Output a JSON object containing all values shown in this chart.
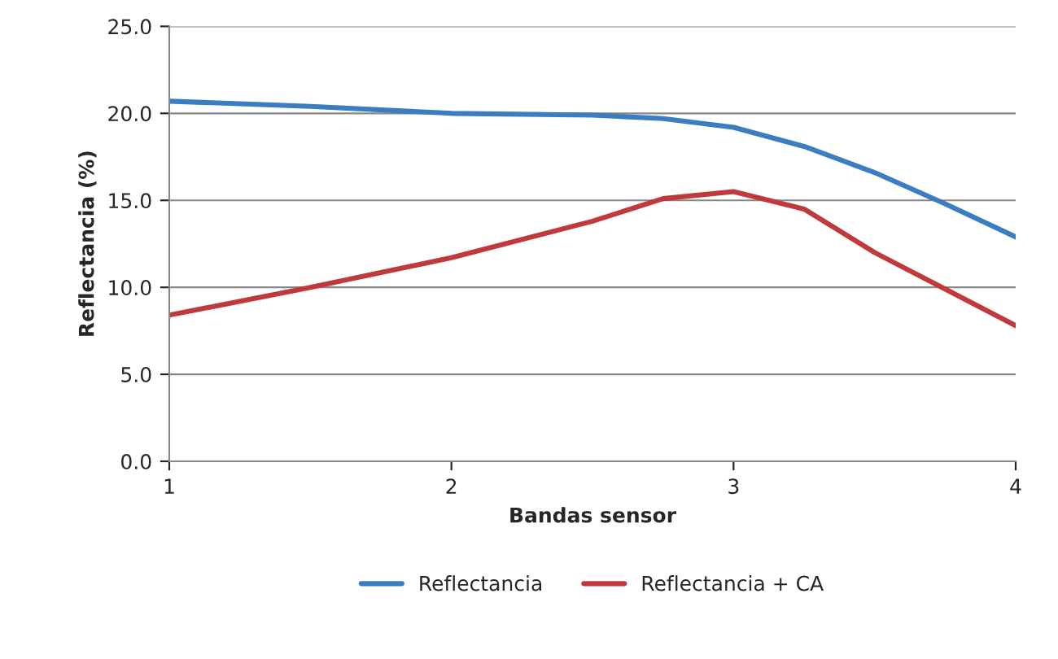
{
  "chart_data": {
    "type": "line",
    "xlabel": "Bandas sensor",
    "ylabel": "Reflectancia (%)",
    "x": [
      1,
      1.5,
      2,
      2.5,
      2.75,
      3,
      3.25,
      3.5,
      3.75,
      4
    ],
    "series": [
      {
        "name": "Reflectancia",
        "color": "#3a7dc0",
        "values": [
          20.7,
          20.4,
          20.0,
          19.9,
          19.7,
          19.2,
          18.1,
          16.6,
          14.8,
          12.9
        ]
      },
      {
        "name": "Reflectancia + CA",
        "color": "#c0393b",
        "values": [
          8.4,
          10.0,
          11.7,
          13.8,
          15.1,
          15.5,
          14.5,
          12.0,
          9.9,
          7.8
        ]
      }
    ],
    "xlim": [
      1,
      4
    ],
    "xticks": [
      1,
      2,
      3,
      4
    ],
    "ylim": [
      0,
      25
    ],
    "yticks": [
      {
        "value": 0,
        "label": "0.0"
      },
      {
        "value": 5,
        "label": "5.0"
      },
      {
        "value": 10,
        "label": "10.0"
      },
      {
        "value": 15,
        "label": "15.0"
      },
      {
        "value": 20,
        "label": "20.0"
      },
      {
        "value": 25,
        "label": "25.0"
      }
    ],
    "grid": "y",
    "legend": "bottom",
    "marker": "none",
    "line_style": "solid"
  }
}
